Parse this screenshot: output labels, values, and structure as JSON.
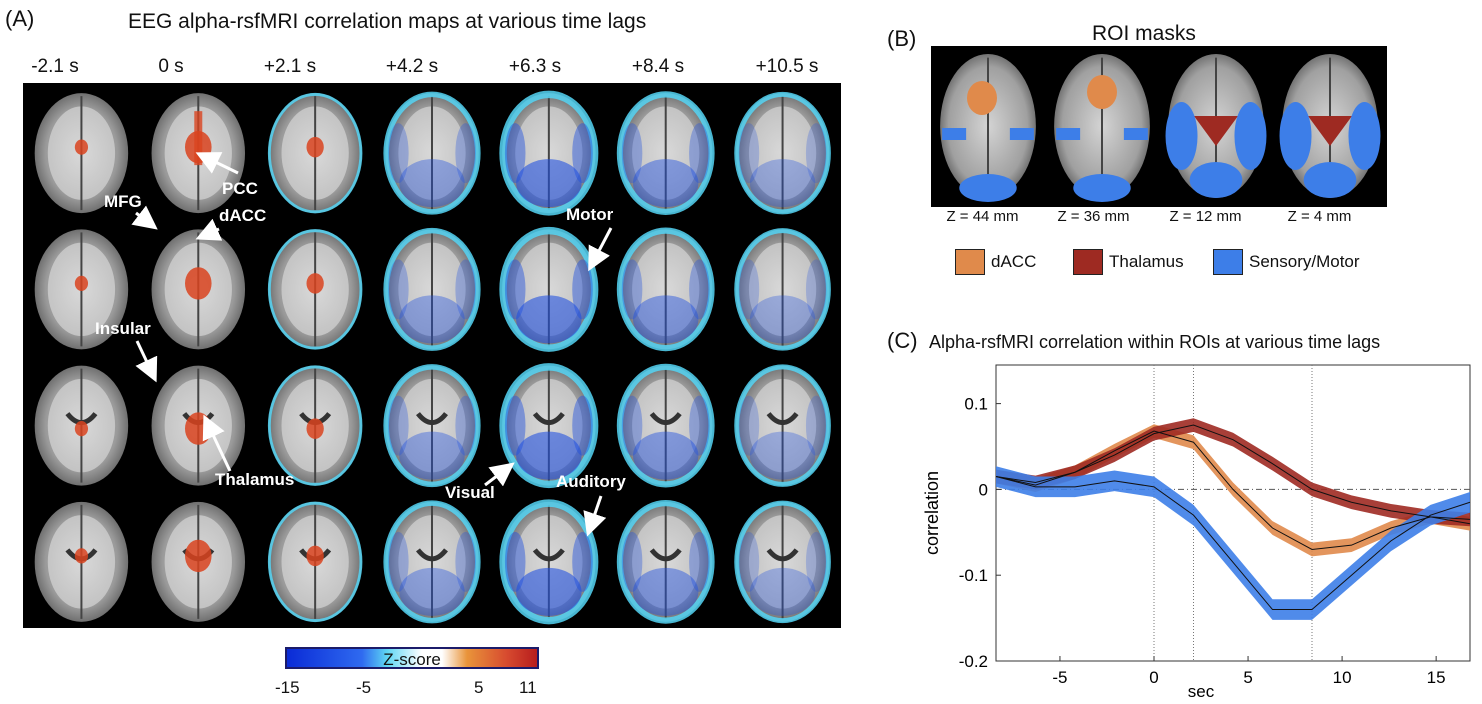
{
  "panel_a": {
    "letter": "(A)",
    "title": "EEG alpha-rsfMRI correlation maps at various time lags",
    "lags": [
      "-2.1 s",
      "0 s",
      "+2.1 s",
      "+4.2 s",
      "+6.3 s",
      "+8.4 s",
      "+10.5 s"
    ],
    "annotations": {
      "pcc": "PCC",
      "dacc": "dACC",
      "mfg": "MFG",
      "motor": "Motor",
      "insular": "Insular",
      "thalamus": "Thalamus",
      "visual": "Visual",
      "auditory": "Auditory"
    },
    "colorbar": {
      "label": "Z-score",
      "ticks": [
        "-15",
        "-5",
        "5",
        "11"
      ]
    }
  },
  "panel_b": {
    "letter": "(B)",
    "title": "ROI masks",
    "slices": [
      "Z = 44 mm",
      "Z = 36 mm",
      "Z = 12 mm",
      "Z = 4 mm"
    ],
    "legend": [
      {
        "label": "dACC",
        "color": "#e08a4b"
      },
      {
        "label": "Thalamus",
        "color": "#9e2a22"
      },
      {
        "label": "Sensory/Motor",
        "color": "#3d7ee8"
      }
    ]
  },
  "panel_c": {
    "letter": "(C)",
    "title": "Alpha-rsfMRI correlation within ROIs at various time lags"
  },
  "chart_data": {
    "type": "line",
    "title": "Alpha-rsfMRI correlation within ROIs at various time lags",
    "xlabel": "sec",
    "ylabel": "correlation",
    "xlim": [
      -8.4,
      16.8
    ],
    "ylim": [
      -0.2,
      0.145
    ],
    "xticks": [
      -5,
      0,
      5,
      10,
      15
    ],
    "xtick_labels": [
      "-5",
      "0",
      "5",
      "10",
      "15"
    ],
    "yticks": [
      -0.2,
      -0.1,
      0,
      0.1
    ],
    "ytick_labels": [
      "-0.2",
      "-0.1",
      "0",
      "0.1"
    ],
    "vlines": [
      0,
      2.1,
      8.4
    ],
    "hline": 0,
    "x": [
      -8.4,
      -6.3,
      -4.2,
      -2.1,
      0,
      2.1,
      4.2,
      6.3,
      8.4,
      10.5,
      12.6,
      14.7,
      16.8
    ],
    "series": [
      {
        "name": "dACC",
        "color": "#e08a4b",
        "values": [
          0.015,
          0.005,
          0.02,
          0.045,
          0.068,
          0.055,
          0.0,
          -0.045,
          -0.07,
          -0.065,
          -0.045,
          -0.032,
          -0.04
        ],
        "band": 0.008
      },
      {
        "name": "Thalamus",
        "color": "#9e2a22",
        "values": [
          0.015,
          0.008,
          0.02,
          0.04,
          0.065,
          0.075,
          0.058,
          0.03,
          0.0,
          -0.015,
          -0.025,
          -0.032,
          -0.035
        ],
        "band": 0.008
      },
      {
        "name": "Sensory/Motor",
        "color": "#3d7ee8",
        "values": [
          0.015,
          0.003,
          0.003,
          0.01,
          0.003,
          -0.03,
          -0.085,
          -0.14,
          -0.14,
          -0.1,
          -0.06,
          -0.03,
          -0.015
        ],
        "band": 0.012
      }
    ]
  },
  "colors": {
    "dacc": "#e08a4b",
    "thalamus": "#9e2a22",
    "sensory": "#3d7ee8",
    "pos_map": "#d9431f",
    "neg_map": "#1f4fe0",
    "neg_map_light": "#55d5f5"
  }
}
